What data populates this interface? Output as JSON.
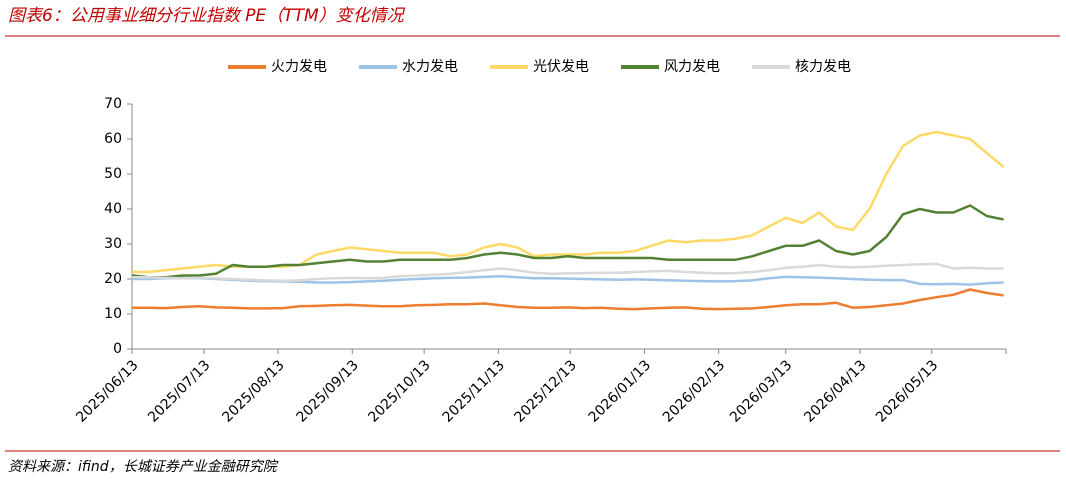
{
  "chart_data": {
    "type": "line",
    "title": "图表6：公用事业细分行业指数 PE（TTM）变化情况",
    "source": "资料来源：ifind，长城证券产业金融研究院",
    "x": [
      "2025/06/13",
      "2025/06/20",
      "2025/06/27",
      "2025/07/04",
      "2025/07/11",
      "2025/07/18",
      "2025/07/25",
      "2025/08/01",
      "2025/08/08",
      "2025/08/15",
      "2025/08/22",
      "2025/08/29",
      "2025/09/05",
      "2025/09/12",
      "2025/09/19",
      "2025/09/26",
      "2025/10/03",
      "2025/10/10",
      "2025/10/17",
      "2025/10/24",
      "2025/10/31",
      "2025/11/07",
      "2025/11/14",
      "2025/11/21",
      "2025/11/28",
      "2025/12/05",
      "2025/12/12",
      "2025/12/19",
      "2025/12/26",
      "2026/01/02",
      "2026/01/09",
      "2026/01/16",
      "2026/01/23",
      "2026/01/30",
      "2026/02/06",
      "2026/02/13",
      "2026/02/20",
      "2026/02/27",
      "2026/03/06",
      "2026/03/13",
      "2026/03/20",
      "2026/03/27",
      "2026/04/03",
      "2026/04/10",
      "2026/04/17",
      "2026/04/24",
      "2026/05/01",
      "2026/05/08",
      "2026/05/15",
      "2026/05/22",
      "2026/05/29",
      "2026/06/05",
      "2026/06/12"
    ],
    "series": [
      {
        "name": "火力发电",
        "color": "#ed7d31",
        "values": [
          11.8,
          11.8,
          11.7,
          12,
          12.2,
          11.9,
          11.8,
          11.6,
          11.6,
          11.7,
          12.2,
          12.3,
          12.5,
          12.6,
          12.4,
          12.2,
          12.2,
          12.5,
          12.6,
          12.8,
          12.8,
          13,
          12.5,
          12,
          11.8,
          11.8,
          11.9,
          11.7,
          11.8,
          11.5,
          11.4,
          11.6,
          11.8,
          11.9,
          11.5,
          11.4,
          11.5,
          11.6,
          12,
          12.5,
          12.8,
          12.8,
          13.2,
          11.8,
          12,
          12.5,
          13,
          14,
          14.8,
          15.5,
          17,
          16,
          15.3
        ]
      },
      {
        "name": "水力发电",
        "color": "#9dc3e6",
        "values": [
          20,
          20,
          20.2,
          20.3,
          20.2,
          20,
          19.8,
          19.5,
          19.4,
          19.3,
          19.2,
          19,
          19,
          19.1,
          19.3,
          19.5,
          19.8,
          20,
          20.2,
          20.3,
          20.4,
          20.6,
          20.8,
          20.5,
          20.2,
          20.2,
          20.1,
          20,
          19.9,
          19.8,
          19.9,
          19.8,
          19.6,
          19.5,
          19.4,
          19.3,
          19.4,
          19.6,
          20.2,
          20.6,
          20.5,
          20.4,
          20.2,
          20,
          19.8,
          19.7,
          19.7,
          18.6,
          18.5,
          18.6,
          18.4,
          18.8,
          19
        ]
      },
      {
        "name": "光伏发电",
        "color": "#ffd966",
        "values": [
          22,
          22,
          22.5,
          23,
          23.5,
          24,
          23.5,
          23.5,
          23.5,
          23.5,
          24,
          27,
          28,
          29,
          28.5,
          28,
          27.5,
          27.5,
          27.5,
          26.5,
          27,
          29,
          30,
          29,
          26.5,
          27,
          27,
          27,
          27.5,
          27.5,
          28,
          29.5,
          31,
          30.5,
          31,
          31,
          31.5,
          32.5,
          35,
          37.5,
          36,
          39,
          35,
          34,
          40,
          50,
          58,
          61,
          62,
          61,
          60,
          56,
          52
        ]
      },
      {
        "name": "风力发电",
        "color": "#548235",
        "values": [
          21,
          20.5,
          20.5,
          21,
          21,
          21.5,
          24,
          23.5,
          23.5,
          24,
          24,
          24.5,
          25,
          25.5,
          25,
          25,
          25.5,
          25.5,
          25.5,
          25.5,
          26,
          27,
          27.5,
          27,
          26,
          26,
          26.5,
          26,
          26,
          26,
          26,
          26,
          25.5,
          25.5,
          25.5,
          25.5,
          25.5,
          26.5,
          28,
          29.5,
          29.5,
          31,
          28,
          27,
          28,
          32,
          38.5,
          40,
          39,
          39,
          41,
          38,
          37
        ]
      },
      {
        "name": "核力发电",
        "color": "#d9d9d9",
        "values": [
          20.5,
          20.5,
          20.3,
          20.2,
          20.3,
          20.2,
          20,
          19.8,
          19.6,
          19.5,
          19.6,
          20,
          20.2,
          20.3,
          20.2,
          20.3,
          20.8,
          21,
          21.2,
          21.5,
          22,
          22.5,
          23,
          22.5,
          21.8,
          21.5,
          21.6,
          21.7,
          21.8,
          21.8,
          22,
          22.2,
          22.3,
          22,
          21.8,
          21.6,
          21.7,
          22,
          22.5,
          23.2,
          23.5,
          24,
          23.5,
          23.3,
          23.5,
          23.8,
          24,
          24.2,
          24.3,
          23,
          23.2,
          23,
          23
        ]
      }
    ],
    "xlim": [
      "2025/06/13",
      "2026/06/13"
    ],
    "xticks": [
      "2025/06/13",
      "2025/07/13",
      "2025/08/13",
      "2025/09/13",
      "2025/10/13",
      "2025/11/13",
      "2025/12/13",
      "2026/01/13",
      "2026/02/13",
      "2026/03/13",
      "2026/04/13",
      "2026/05/13"
    ],
    "ylim": [
      0,
      70
    ],
    "yticks": [
      0,
      10,
      20,
      30,
      40,
      50,
      60,
      70
    ],
    "grid": false
  }
}
